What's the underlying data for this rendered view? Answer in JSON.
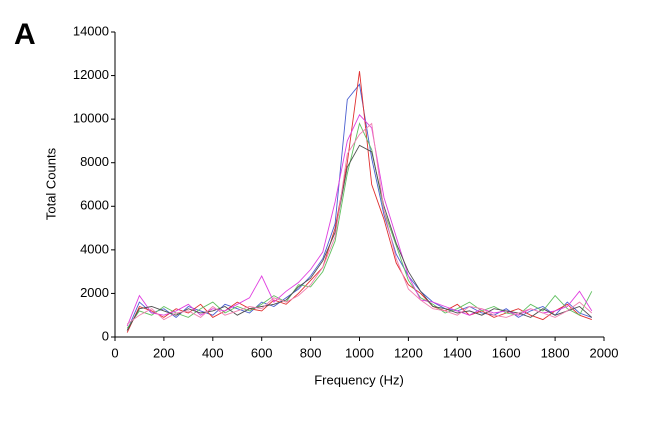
{
  "panel_label": "A",
  "chart_data": {
    "type": "line",
    "x_label": "Frequency (Hz)",
    "y_label": "Total Counts",
    "x": [
      50,
      100,
      150,
      200,
      250,
      300,
      350,
      400,
      450,
      500,
      550,
      600,
      650,
      700,
      750,
      800,
      850,
      900,
      950,
      1000,
      1050,
      1100,
      1150,
      1200,
      1250,
      1300,
      1350,
      1400,
      1450,
      1500,
      1550,
      1600,
      1650,
      1700,
      1750,
      1800,
      1850,
      1900,
      1950
    ],
    "series": [
      {
        "color": "#4a5fd0",
        "values": [
          300,
          1600,
          1100,
          1300,
          900,
          1400,
          1200,
          1000,
          1500,
          1300,
          1100,
          1600,
          1400,
          1800,
          2200,
          2800,
          3600,
          5200,
          10900,
          11600,
          8200,
          5600,
          3800,
          2800,
          2100,
          1600,
          1300,
          1200,
          1400,
          1100,
          1000,
          1300,
          900,
          1200,
          1400,
          1000,
          1600,
          1100,
          900
        ]
      },
      {
        "color": "#e03030",
        "values": [
          200,
          1400,
          1200,
          900,
          1300,
          1100,
          1500,
          900,
          1200,
          1600,
          1300,
          1200,
          1700,
          1500,
          2000,
          2600,
          3200,
          5000,
          8000,
          12200,
          7000,
          5400,
          3400,
          2400,
          2000,
          1400,
          1200,
          1500,
          1000,
          1200,
          900,
          1100,
          1300,
          1000,
          800,
          1200,
          1500,
          1000,
          800
        ]
      },
      {
        "color": "#60c060",
        "values": [
          400,
          1200,
          1000,
          1400,
          1100,
          900,
          1300,
          1600,
          1100,
          1400,
          1200,
          1500,
          1900,
          1600,
          2400,
          2300,
          3000,
          4400,
          7500,
          9800,
          8600,
          5800,
          4200,
          2600,
          1800,
          1500,
          1100,
          1300,
          1600,
          1200,
          1400,
          1100,
          1000,
          1500,
          1200,
          1900,
          1300,
          1000,
          2100
        ]
      },
      {
        "color": "#e040e0",
        "values": [
          500,
          1900,
          1100,
          1000,
          1200,
          1500,
          1000,
          1300,
          1200,
          1500,
          1800,
          2800,
          1600,
          2100,
          2500,
          3100,
          3900,
          6200,
          9000,
          10200,
          9600,
          6400,
          4600,
          2800,
          1700,
          1600,
          1400,
          1200,
          1000,
          1300,
          1100,
          1200,
          1000,
          1300,
          1100,
          1200,
          1400,
          2100,
          1200
        ]
      },
      {
        "color": "#505050",
        "values": [
          300,
          1300,
          1400,
          1200,
          1000,
          1300,
          1100,
          1200,
          1400,
          1000,
          1300,
          1400,
          1500,
          1700,
          2300,
          2700,
          3500,
          4800,
          7800,
          8800,
          8500,
          6000,
          4300,
          3000,
          2100,
          1400,
          1300,
          1100,
          1200,
          1000,
          1300,
          1200,
          1100,
          900,
          1300,
          1000,
          1200,
          1400,
          900
        ]
      },
      {
        "color": "#f080b0",
        "values": [
          600,
          1000,
          1300,
          800,
          1100,
          1200,
          900,
          1400,
          1000,
          1200,
          1400,
          1300,
          1800,
          1600,
          1900,
          2400,
          3200,
          4600,
          8400,
          9300,
          9800,
          5800,
          3600,
          2200,
          1700,
          1300,
          1200,
          1000,
          1400,
          1300,
          1000,
          900,
          1100,
          1300,
          1100,
          900,
          1200,
          1600,
          1100
        ]
      }
    ],
    "xlim": [
      0,
      2000
    ],
    "xticks": [
      0,
      200,
      400,
      600,
      800,
      1000,
      1200,
      1400,
      1600,
      1800,
      2000
    ],
    "ylim": [
      0,
      14000
    ],
    "yticks": [
      0,
      2000,
      4000,
      6000,
      8000,
      10000,
      12000,
      14000
    ],
    "grid": false
  }
}
